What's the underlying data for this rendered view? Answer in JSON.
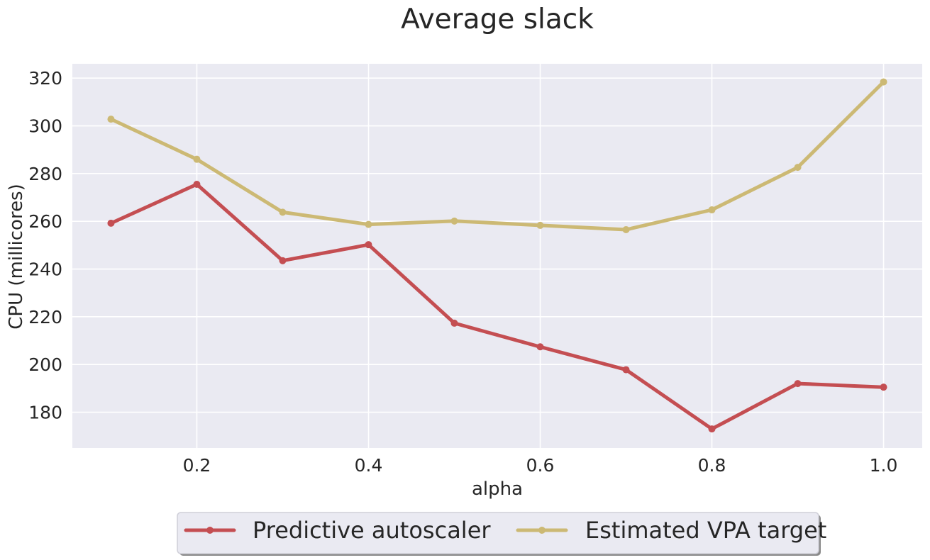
{
  "chart_data": {
    "type": "line",
    "title": "Average slack",
    "xlabel": "alpha",
    "ylabel": "CPU (millicores)",
    "x": [
      0.1,
      0.2,
      0.3,
      0.4,
      0.5,
      0.6,
      0.7,
      0.8,
      0.9,
      1.0
    ],
    "xlim": [
      0.055,
      1.045
    ],
    "ylim": [
      165,
      326
    ],
    "xticks": [
      0.2,
      0.4,
      0.6,
      0.8,
      1.0
    ],
    "xtick_labels": [
      "0.2",
      "0.4",
      "0.6",
      "0.8",
      "1.0"
    ],
    "yticks": [
      180,
      200,
      220,
      240,
      260,
      280,
      300,
      320
    ],
    "ytick_labels": [
      "180",
      "200",
      "220",
      "240",
      "260",
      "280",
      "300",
      "320"
    ],
    "grid": true,
    "legend_position": "bottom-center, below axes",
    "background_color": "#eaeaf2",
    "grid_color": "#ffffff",
    "series": [
      {
        "name": "Predictive autoscaler",
        "color": "#c44e52",
        "values": [
          259.2,
          275.5,
          243.5,
          250.2,
          217.3,
          207.4,
          197.8,
          173.0,
          192.0,
          190.5
        ]
      },
      {
        "name": "Estimated VPA target",
        "color": "#ccb974",
        "values": [
          302.8,
          286.0,
          263.8,
          258.7,
          260.1,
          258.3,
          256.5,
          264.8,
          282.6,
          318.4
        ]
      }
    ]
  }
}
